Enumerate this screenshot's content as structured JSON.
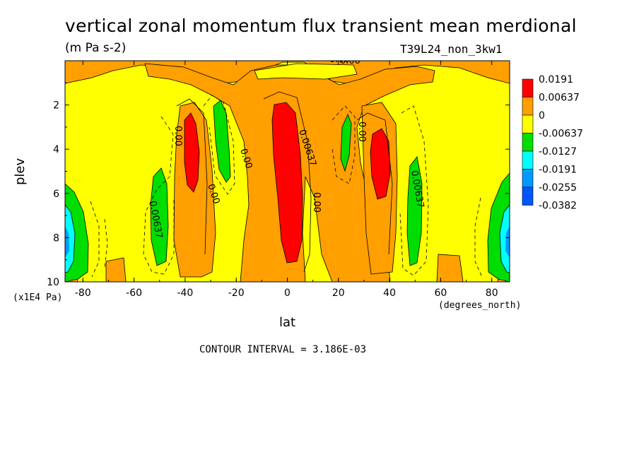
{
  "header": {
    "title": "vertical zonal momentum flux transient mean merdional",
    "units": "(m Pa s-2)",
    "run_label": "T39L24_non_3kw1"
  },
  "chart_data": {
    "type": "heatmap",
    "title": "vertical zonal momentum flux transient mean merdional",
    "xlabel": "lat",
    "x_units": "(degrees_north)",
    "ylabel": "plev",
    "y_units": "(x1E4 Pa)",
    "xlim": [
      -87,
      87
    ],
    "ylim": [
      0,
      10
    ],
    "y_inverted": true,
    "x_ticks": [
      "-80",
      "-60",
      "-40",
      "-20",
      "0",
      "20",
      "40",
      "60",
      "80"
    ],
    "x_tick_values": [
      -80,
      -60,
      -40,
      -20,
      0,
      20,
      40,
      60,
      80
    ],
    "y_ticks": [
      "2",
      "4",
      "6",
      "8",
      "10"
    ],
    "y_tick_values": [
      2,
      4,
      6,
      8,
      10
    ],
    "contour_interval": "CONTOUR INTERVAL = 3.186E-03",
    "contour_labels": [
      "0.00",
      "0.00637",
      "0.00",
      "0.00",
      "0.00",
      "0.00",
      "0.00637",
      "0.00",
      "0.00637",
      "0.00"
    ],
    "legend": {
      "placement": "right",
      "levels": [
        "0.0191",
        "0.00637",
        "0",
        "-0.00637",
        "-0.0127",
        "-0.0191",
        "-0.0255",
        "-0.0382"
      ],
      "colors": [
        "#ff0000",
        "#ff9f00",
        "#ffff00",
        "#00dd00",
        "#00ffff",
        "#0099ff",
        "#0055ff"
      ]
    },
    "regions": [
      {
        "level": "positive-strong",
        "lat": [
          -40,
          -33
        ],
        "plev": [
          3.0,
          5.8
        ]
      },
      {
        "level": "positive-strong",
        "lat": [
          -2,
          10
        ],
        "plev": [
          2.0,
          9.0
        ]
      },
      {
        "level": "positive-strong",
        "lat": [
          33,
          40
        ],
        "plev": [
          3.0,
          5.6
        ]
      },
      {
        "level": "negative",
        "lat": [
          -55,
          -47
        ],
        "plev": [
          4.9,
          8.8
        ]
      },
      {
        "level": "negative",
        "lat": [
          -30,
          -22
        ],
        "plev": [
          2.0,
          5.3
        ]
      },
      {
        "level": "negative",
        "lat": [
          23,
          28
        ],
        "plev": [
          2.5,
          5.0
        ]
      },
      {
        "level": "negative",
        "lat": [
          48,
          57
        ],
        "plev": [
          4.5,
          8.6
        ]
      },
      {
        "level": "negative",
        "lat": [
          -87,
          -79
        ],
        "plev": [
          5.5,
          9.7
        ]
      },
      {
        "level": "negative",
        "lat": [
          79,
          87
        ],
        "plev": [
          5.5,
          9.7
        ]
      },
      {
        "level": "negative-strong",
        "lat": [
          -87,
          -83
        ],
        "plev": [
          6.5,
          9.3
        ]
      },
      {
        "level": "negative-strong",
        "lat": [
          83,
          87
        ],
        "plev": [
          6.5,
          9.3
        ]
      }
    ]
  },
  "axis_text": {
    "ylabel": "plev",
    "yunits": "(x1E4 Pa)",
    "xlabel": "lat",
    "xunits": "(degrees_north)",
    "contour": "CONTOUR INTERVAL = 3.186E-03"
  }
}
